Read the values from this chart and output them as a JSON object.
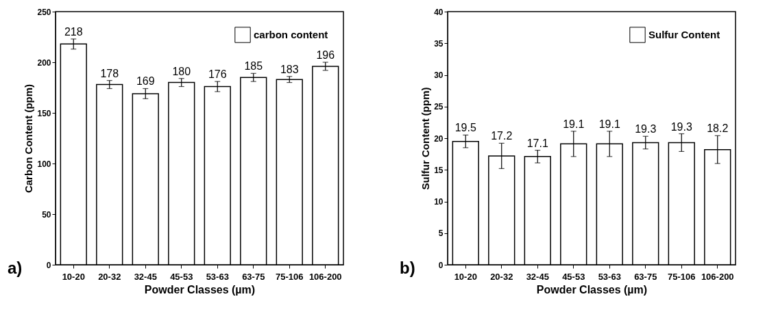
{
  "chart_data": [
    {
      "type": "bar",
      "xlabel": "Powder Classes (µm)",
      "ylabel": "Carbon Content (ppm)",
      "categories": [
        "10-20",
        "20-32",
        "32-45",
        "45-53",
        "53-63",
        "63-75",
        "75-106",
        "106-200"
      ],
      "series": [
        {
          "name": "carbon content",
          "color": "#ffffff",
          "values": [
            218,
            178,
            169,
            180,
            176,
            185,
            183,
            196
          ],
          "errors": [
            5,
            4,
            5,
            4,
            5,
            4,
            3,
            4
          ]
        }
      ],
      "ylim": [
        0,
        250
      ],
      "yticks": [
        0,
        50,
        100,
        150,
        200,
        250
      ],
      "data_labels": true,
      "grid": false,
      "legend": "top right",
      "annotations": [
        "a)"
      ]
    },
    {
      "type": "bar",
      "xlabel": "Powder Classes (µm)",
      "ylabel": "Sulfur Content (ppm)",
      "categories": [
        "10-20",
        "20-32",
        "32-45",
        "45-53",
        "53-63",
        "63-75",
        "75-106",
        "106-200"
      ],
      "series": [
        {
          "name": "Sulfur Content",
          "color": "#ffffff",
          "values": [
            19.5,
            17.2,
            17.1,
            19.1,
            19.1,
            19.3,
            19.3,
            18.2
          ],
          "errors": [
            1.0,
            2.0,
            1.0,
            2.0,
            2.0,
            1.0,
            1.4,
            2.2
          ]
        }
      ],
      "ylim": [
        0,
        40
      ],
      "yticks": [
        0,
        5,
        10,
        15,
        20,
        25,
        30,
        35,
        40
      ],
      "data_labels": true,
      "grid": false,
      "legend": "top right",
      "annotations": [
        "b)"
      ]
    }
  ]
}
